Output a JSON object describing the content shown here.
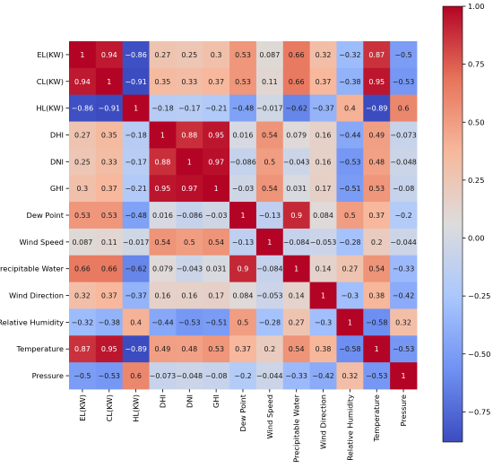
{
  "chart_data": {
    "type": "heatmap",
    "title": "",
    "xlabel": "",
    "ylabel": "",
    "labels": [
      "EL(KW)",
      "CL(KW)",
      "HL(KW)",
      "DHI",
      "DNI",
      "GHI",
      "Dew Point",
      "Wind Speed",
      "Precipitable Water",
      "Wind Direction",
      "Relative Humidity",
      "Temperature",
      "Pressure"
    ],
    "matrix": [
      [
        1,
        0.94,
        -0.86,
        0.27,
        0.25,
        0.3,
        0.53,
        0.087,
        0.66,
        0.32,
        -0.32,
        0.87,
        -0.5
      ],
      [
        0.94,
        1,
        -0.91,
        0.35,
        0.33,
        0.37,
        0.53,
        0.11,
        0.66,
        0.37,
        -0.38,
        0.95,
        -0.53
      ],
      [
        -0.86,
        -0.91,
        1,
        -0.18,
        -0.17,
        -0.21,
        -0.48,
        -0.017,
        -0.62,
        -0.37,
        0.4,
        -0.89,
        0.6
      ],
      [
        0.27,
        0.35,
        -0.18,
        1,
        0.88,
        0.95,
        0.016,
        0.54,
        0.079,
        0.16,
        -0.44,
        0.49,
        -0.073
      ],
      [
        0.25,
        0.33,
        -0.17,
        0.88,
        1,
        0.97,
        -0.086,
        0.5,
        -0.043,
        0.16,
        -0.53,
        0.48,
        -0.048
      ],
      [
        0.3,
        0.37,
        -0.21,
        0.95,
        0.97,
        1,
        -0.03,
        0.54,
        0.031,
        0.17,
        -0.51,
        0.53,
        -0.08
      ],
      [
        0.53,
        0.53,
        -0.48,
        0.016,
        -0.086,
        -0.03,
        1,
        -0.13,
        0.9,
        0.084,
        0.5,
        0.37,
        -0.2
      ],
      [
        0.087,
        0.11,
        -0.017,
        0.54,
        0.5,
        0.54,
        -0.13,
        1,
        -0.084,
        -0.053,
        -0.28,
        0.2,
        -0.044
      ],
      [
        0.66,
        0.66,
        -0.62,
        0.079,
        -0.043,
        0.031,
        0.9,
        -0.084,
        1,
        0.14,
        0.27,
        0.54,
        -0.33
      ],
      [
        0.32,
        0.37,
        -0.37,
        0.16,
        0.16,
        0.17,
        0.084,
        -0.053,
        0.14,
        1,
        -0.3,
        0.38,
        -0.42
      ],
      [
        -0.32,
        -0.38,
        0.4,
        -0.44,
        -0.53,
        -0.51,
        0.5,
        -0.28,
        0.27,
        -0.3,
        1,
        -0.58,
        0.32
      ],
      [
        0.87,
        0.95,
        -0.89,
        0.49,
        0.48,
        0.53,
        0.37,
        0.2,
        0.54,
        0.38,
        -0.58,
        1,
        -0.53
      ],
      [
        -0.5,
        -0.53,
        0.6,
        -0.073,
        -0.048,
        -0.08,
        -0.2,
        -0.044,
        -0.33,
        -0.42,
        0.32,
        -0.53,
        1
      ]
    ],
    "colorbar": {
      "range": [
        -0.88,
        1.0
      ],
      "ticks": [
        1.0,
        0.75,
        0.5,
        0.25,
        0.0,
        -0.25,
        -0.5,
        -0.75
      ],
      "tick_labels": [
        "1.00",
        "0.75",
        "0.50",
        "0.25",
        "0.00",
        "−0.25",
        "−0.50",
        "−0.75"
      ],
      "colormap": "coolwarm",
      "colors": [
        "#3b4cc0",
        "#6f92f3",
        "#aac7fd",
        "#dddcdc",
        "#f7b89c",
        "#e7745b",
        "#b40426"
      ]
    },
    "grid": false,
    "legend": "colorbar-right"
  }
}
